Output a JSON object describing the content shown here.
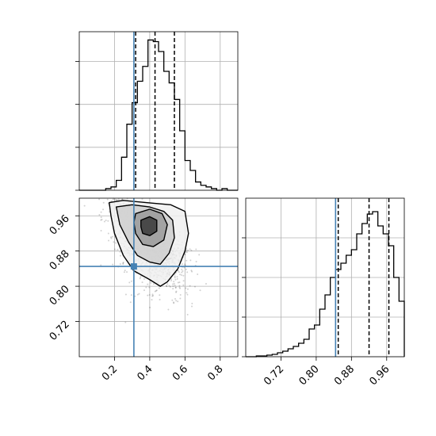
{
  "chart_data": [
    {
      "type": "histogram",
      "panel": "top-left",
      "parameter_index": 0,
      "xlim": [
        0.0,
        0.9
      ],
      "bin_edges": [
        0.0,
        0.03,
        0.06,
        0.09,
        0.12,
        0.15,
        0.18,
        0.21,
        0.24,
        0.27,
        0.3,
        0.33,
        0.36,
        0.39,
        0.42,
        0.45,
        0.48,
        0.51,
        0.54,
        0.57,
        0.6,
        0.63,
        0.66,
        0.69,
        0.72,
        0.75,
        0.78,
        0.81,
        0.84,
        0.87,
        0.9
      ],
      "counts": [
        0,
        0,
        0,
        0,
        0,
        1,
        2,
        6,
        20,
        40,
        53,
        66,
        75,
        91,
        90,
        84,
        72,
        65,
        55,
        36,
        18,
        12,
        5,
        3,
        2,
        1,
        0,
        1,
        0,
        0
      ],
      "ylim": [
        0,
        96
      ],
      "ytick_values": [
        0,
        26,
        52,
        78
      ],
      "quantiles": [
        0.32,
        0.43,
        0.54
      ],
      "truth": 0.31,
      "grid": true
    },
    {
      "type": "histogram",
      "panel": "bottom-right",
      "parameter_index": 1,
      "xlim": [
        0.64,
        1.0
      ],
      "xticks": [
        "0.72",
        "0.80",
        "0.88",
        "0.96"
      ],
      "xtick_values": [
        0.72,
        0.8,
        0.88,
        0.96
      ],
      "bin_edges": [
        0.64,
        0.652,
        0.664,
        0.676,
        0.688,
        0.7,
        0.712,
        0.724,
        0.736,
        0.748,
        0.76,
        0.772,
        0.784,
        0.796,
        0.808,
        0.82,
        0.832,
        0.844,
        0.856,
        0.868,
        0.88,
        0.892,
        0.904,
        0.916,
        0.928,
        0.94,
        0.952,
        0.964,
        0.976,
        0.988,
        1.0
      ],
      "counts": [
        0,
        0,
        1,
        1,
        2,
        3,
        5,
        7,
        10,
        13,
        17,
        22,
        35,
        40,
        60,
        78,
        100,
        110,
        118,
        128,
        135,
        155,
        168,
        180,
        183,
        165,
        155,
        140,
        100,
        70
      ],
      "ylim": [
        0,
        200
      ],
      "ytick_values": [
        0,
        50,
        100,
        150
      ],
      "quantiles": [
        0.85,
        0.92,
        0.965
      ],
      "truth": 0.844,
      "grid": true
    },
    {
      "type": "scatter-density",
      "panel": "bottom-left",
      "xlim": [
        0.0,
        0.9
      ],
      "ylim": [
        0.64,
        1.0
      ],
      "xticks": [
        "0.2",
        "0.4",
        "0.6",
        "0.8"
      ],
      "xtick_values": [
        0.2,
        0.4,
        0.6,
        0.8
      ],
      "yticks": [
        "0.72",
        "0.80",
        "0.88",
        "0.96"
      ],
      "ytick_values": [
        0.72,
        0.8,
        0.88,
        0.96
      ],
      "center": [
        0.4,
        0.935
      ],
      "truth": [
        0.31,
        0.845
      ],
      "contours": [
        [
          [
            0.17,
            0.99
          ],
          [
            0.25,
            0.995
          ],
          [
            0.38,
            0.99
          ],
          [
            0.52,
            0.985
          ],
          [
            0.6,
            0.97
          ],
          [
            0.62,
            0.92
          ],
          [
            0.6,
            0.88
          ],
          [
            0.56,
            0.84
          ],
          [
            0.5,
            0.81
          ],
          [
            0.46,
            0.8
          ],
          [
            0.4,
            0.815
          ],
          [
            0.31,
            0.835
          ],
          [
            0.25,
            0.87
          ],
          [
            0.2,
            0.92
          ],
          [
            0.18,
            0.96
          ]
        ],
        [
          [
            0.21,
            0.98
          ],
          [
            0.3,
            0.985
          ],
          [
            0.4,
            0.98
          ],
          [
            0.48,
            0.97
          ],
          [
            0.53,
            0.95
          ],
          [
            0.54,
            0.91
          ],
          [
            0.51,
            0.875
          ],
          [
            0.46,
            0.85
          ],
          [
            0.4,
            0.855
          ],
          [
            0.33,
            0.87
          ],
          [
            0.28,
            0.9
          ],
          [
            0.23,
            0.94
          ]
        ],
        [
          [
            0.32,
            0.965
          ],
          [
            0.4,
            0.975
          ],
          [
            0.47,
            0.965
          ],
          [
            0.5,
            0.94
          ],
          [
            0.48,
            0.905
          ],
          [
            0.42,
            0.89
          ],
          [
            0.36,
            0.895
          ],
          [
            0.32,
            0.92
          ],
          [
            0.31,
            0.945
          ]
        ],
        [
          [
            0.35,
            0.95
          ],
          [
            0.4,
            0.958
          ],
          [
            0.44,
            0.95
          ],
          [
            0.44,
            0.925
          ],
          [
            0.4,
            0.915
          ],
          [
            0.36,
            0.92
          ],
          [
            0.35,
            0.935
          ]
        ]
      ],
      "grid": true
    }
  ],
  "colors": {
    "truth": "#4682b4",
    "hist": "#000000",
    "grid": "#b0b0b0",
    "points": "#000000"
  }
}
